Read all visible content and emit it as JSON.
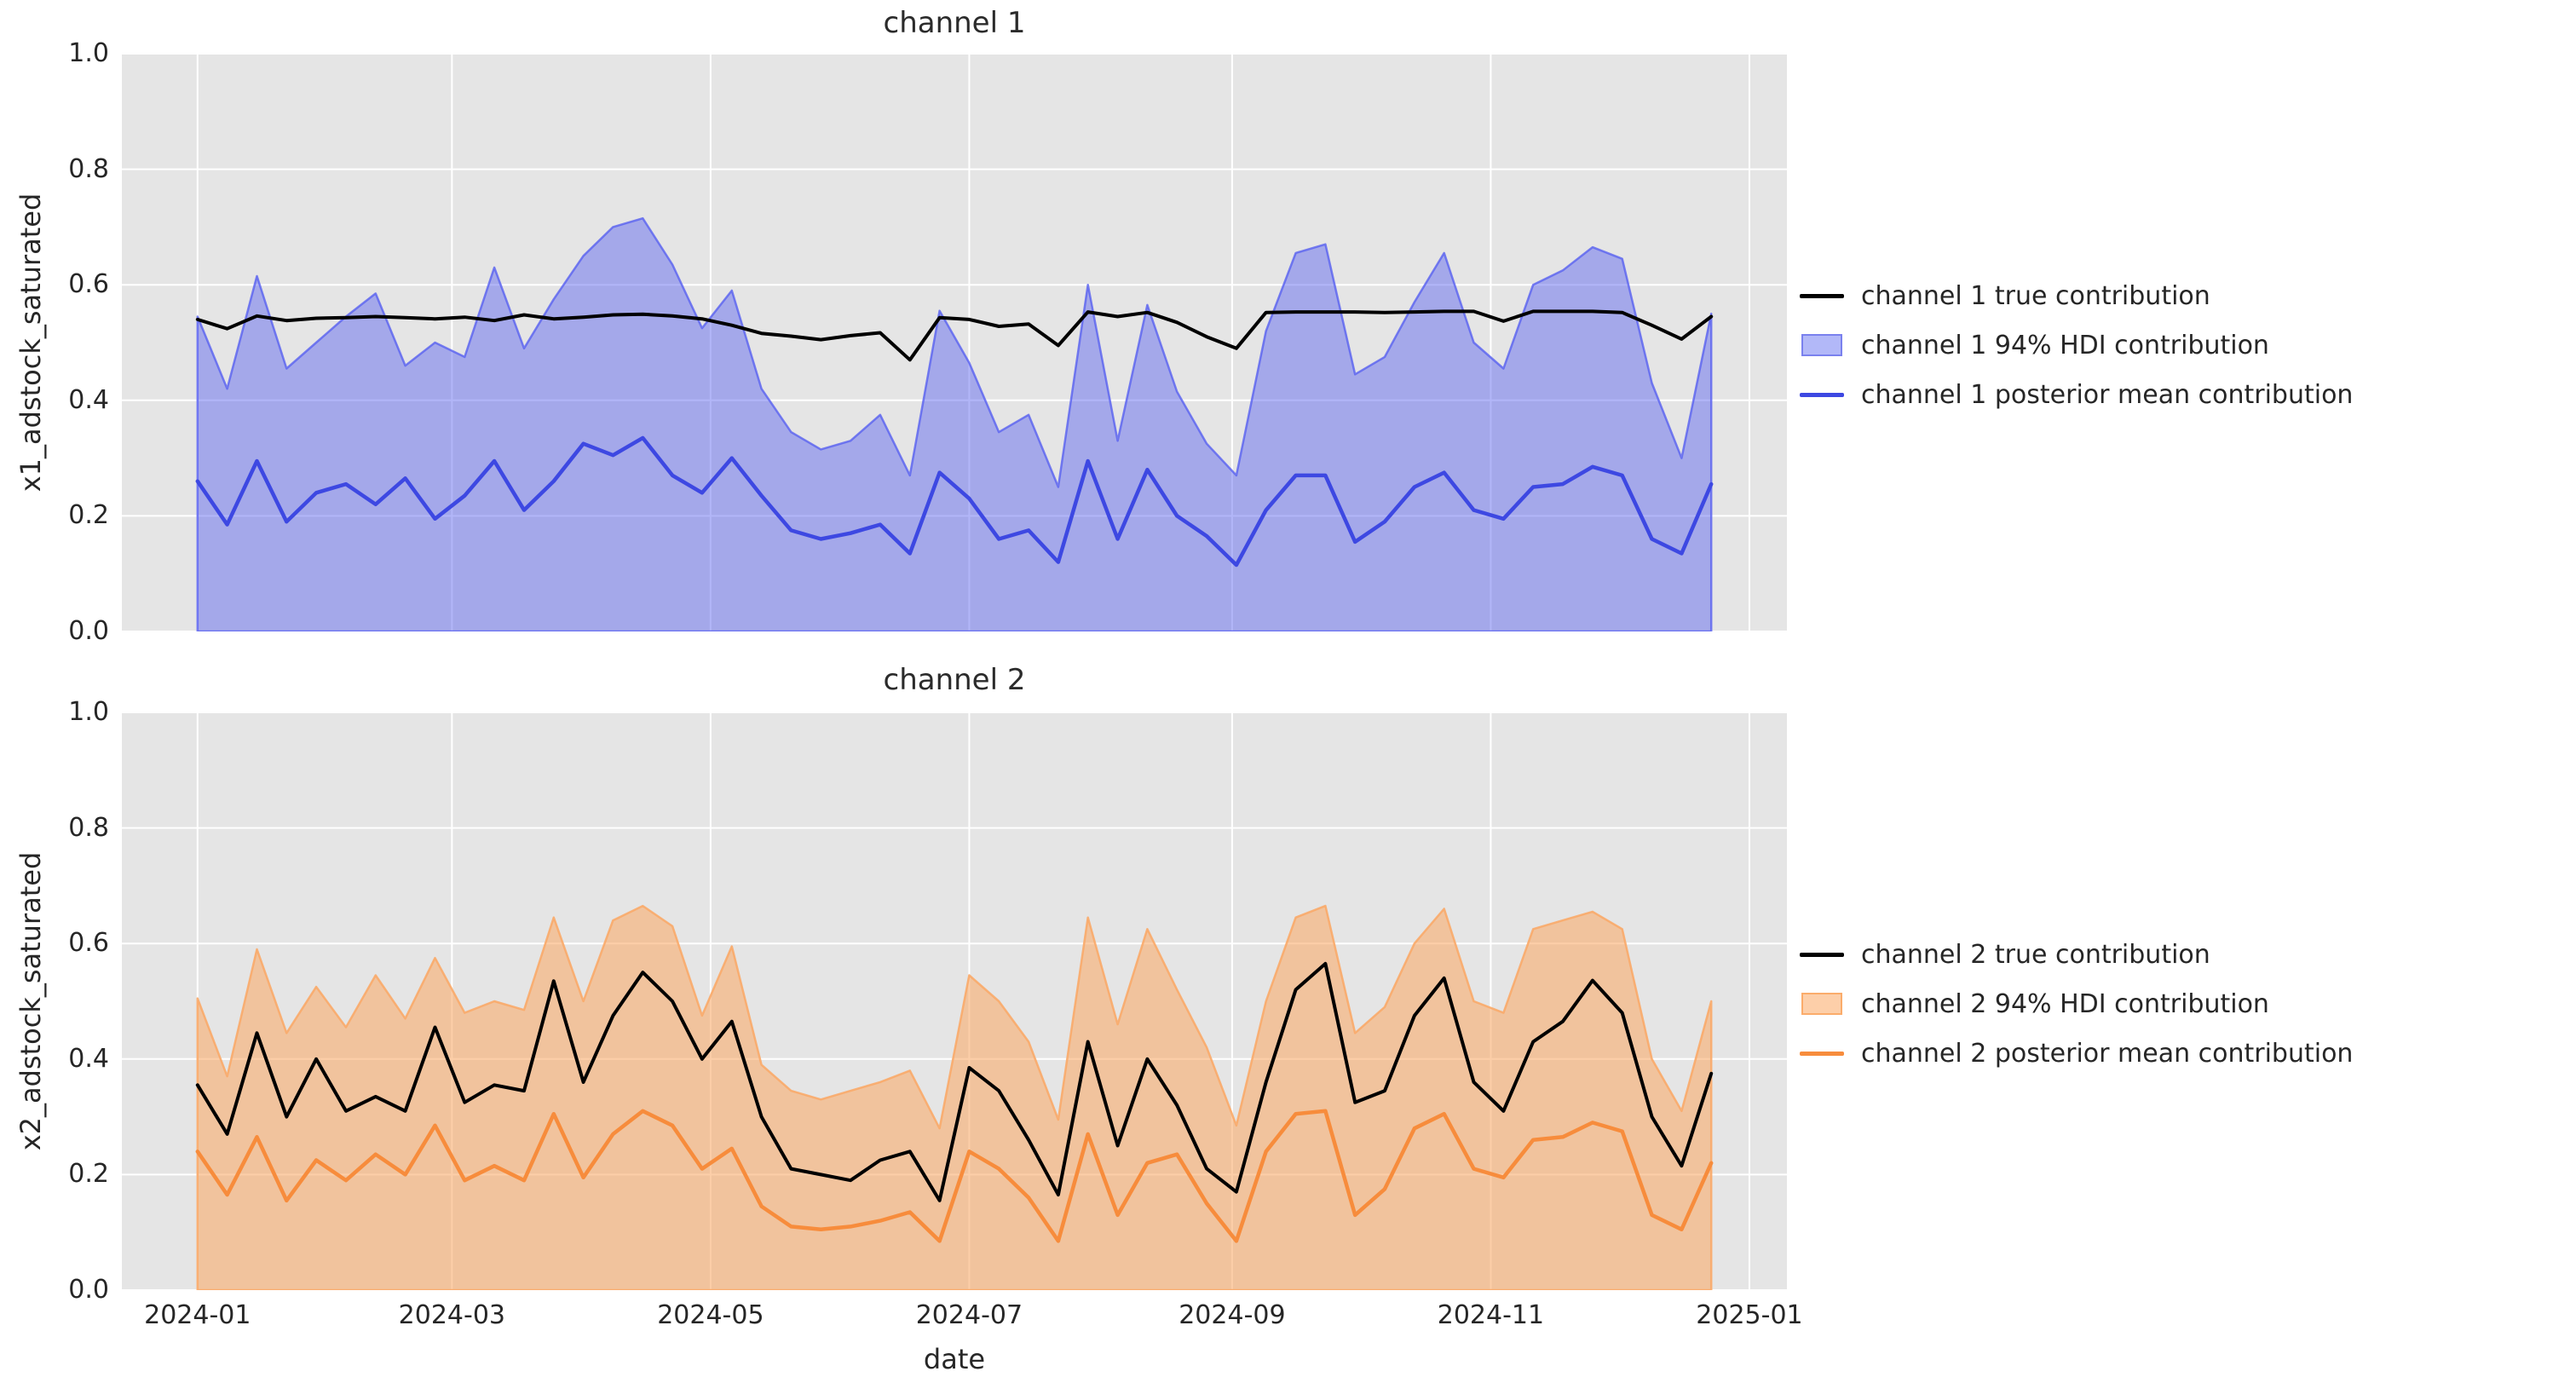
{
  "figure": {
    "xlabel": "date",
    "background": "#ffffff",
    "plot_background": "#e5e5e5",
    "grid_color": "#ffffff",
    "text_color": "#262626",
    "xticks": [
      {
        "label": "2024-01",
        "day": 0
      },
      {
        "label": "2024-03",
        "day": 60
      },
      {
        "label": "2024-05",
        "day": 121
      },
      {
        "label": "2024-07",
        "day": 182
      },
      {
        "label": "2024-09",
        "day": 244
      },
      {
        "label": "2024-11",
        "day": 305
      },
      {
        "label": "2025-01",
        "day": 366
      }
    ]
  },
  "chart_data": [
    {
      "type": "area",
      "title": "channel 1",
      "ylabel": "x1_adstock_saturated",
      "ylim": [
        0.0,
        1.0
      ],
      "yticks": [
        0.0,
        0.2,
        0.4,
        0.6,
        0.8,
        1.0
      ],
      "x_start_day": 0,
      "x_step_days": 7,
      "n_points": 52,
      "grid": true,
      "legend_position": "center-right",
      "series": [
        {
          "name": "channel 1 true contribution",
          "kind": "line",
          "color": "#000000",
          "values": [
            0.54,
            0.524,
            0.546,
            0.538,
            0.542,
            0.543,
            0.545,
            0.543,
            0.541,
            0.544,
            0.538,
            0.548,
            0.541,
            0.544,
            0.548,
            0.549,
            0.546,
            0.541,
            0.53,
            0.516,
            0.511,
            0.505,
            0.512,
            0.517,
            0.47,
            0.543,
            0.54,
            0.528,
            0.532,
            0.495,
            0.553,
            0.545,
            0.552,
            0.535,
            0.51,
            0.49,
            0.552,
            0.553,
            0.553,
            0.553,
            0.552,
            0.553,
            0.554,
            0.554,
            0.537,
            0.554,
            0.554,
            0.554,
            0.552,
            0.53,
            0.506,
            0.545
          ]
        },
        {
          "name": "channel 1 94% HDI contribution",
          "kind": "band",
          "fill": "rgba(88,96,240,0.46)",
          "edge": "rgba(88,96,240,0.8)",
          "swatch_fill": "#b2b8f8",
          "swatch_edge": "#7a81ee",
          "lower": 0.0,
          "values": [
            0.545,
            0.42,
            0.615,
            0.455,
            0.5,
            0.545,
            0.585,
            0.46,
            0.5,
            0.475,
            0.63,
            0.49,
            0.575,
            0.65,
            0.7,
            0.715,
            0.635,
            0.525,
            0.59,
            0.42,
            0.345,
            0.315,
            0.33,
            0.375,
            0.27,
            0.555,
            0.465,
            0.345,
            0.375,
            0.25,
            0.6,
            0.33,
            0.565,
            0.415,
            0.325,
            0.27,
            0.52,
            0.655,
            0.67,
            0.445,
            0.475,
            0.57,
            0.655,
            0.5,
            0.455,
            0.6,
            0.625,
            0.665,
            0.645,
            0.43,
            0.3,
            0.55
          ]
        },
        {
          "name": "channel 1 posterior mean contribution",
          "kind": "line",
          "color": "#3d48e2",
          "values": [
            0.26,
            0.185,
            0.295,
            0.19,
            0.24,
            0.255,
            0.22,
            0.265,
            0.195,
            0.235,
            0.295,
            0.21,
            0.26,
            0.325,
            0.305,
            0.335,
            0.27,
            0.24,
            0.3,
            0.235,
            0.175,
            0.16,
            0.17,
            0.185,
            0.135,
            0.275,
            0.23,
            0.16,
            0.175,
            0.12,
            0.295,
            0.16,
            0.28,
            0.2,
            0.165,
            0.115,
            0.21,
            0.27,
            0.27,
            0.155,
            0.19,
            0.25,
            0.275,
            0.21,
            0.195,
            0.25,
            0.255,
            0.285,
            0.27,
            0.16,
            0.135,
            0.255
          ]
        }
      ]
    },
    {
      "type": "area",
      "title": "channel 2",
      "ylabel": "x2_adstock_saturated",
      "ylim": [
        0.0,
        1.0
      ],
      "yticks": [
        0.0,
        0.2,
        0.4,
        0.6,
        0.8,
        1.0
      ],
      "x_start_day": 0,
      "x_step_days": 7,
      "n_points": 52,
      "grid": true,
      "legend_position": "center-right",
      "series": [
        {
          "name": "channel 2 true contribution",
          "kind": "line",
          "color": "#000000",
          "values": [
            0.355,
            0.27,
            0.445,
            0.3,
            0.4,
            0.31,
            0.335,
            0.31,
            0.455,
            0.325,
            0.355,
            0.345,
            0.535,
            0.36,
            0.475,
            0.55,
            0.5,
            0.4,
            0.465,
            0.3,
            0.21,
            0.2,
            0.19,
            0.225,
            0.24,
            0.155,
            0.385,
            0.345,
            0.26,
            0.165,
            0.43,
            0.25,
            0.4,
            0.32,
            0.21,
            0.17,
            0.36,
            0.52,
            0.565,
            0.325,
            0.345,
            0.475,
            0.54,
            0.36,
            0.31,
            0.43,
            0.465,
            0.536,
            0.48,
            0.3,
            0.215,
            0.375
          ]
        },
        {
          "name": "channel 2 94% HDI contribution",
          "kind": "band",
          "fill": "rgba(250,170,105,0.58)",
          "edge": "rgba(250,170,105,0.9)",
          "swatch_fill": "#fdcfa9",
          "swatch_edge": "#fbac6b",
          "lower": 0.0,
          "values": [
            0.505,
            0.37,
            0.59,
            0.445,
            0.525,
            0.455,
            0.545,
            0.47,
            0.575,
            0.48,
            0.5,
            0.485,
            0.645,
            0.5,
            0.64,
            0.665,
            0.63,
            0.475,
            0.595,
            0.39,
            0.345,
            0.33,
            0.345,
            0.36,
            0.38,
            0.28,
            0.545,
            0.5,
            0.43,
            0.295,
            0.645,
            0.46,
            0.625,
            0.52,
            0.42,
            0.285,
            0.5,
            0.645,
            0.665,
            0.445,
            0.49,
            0.6,
            0.66,
            0.5,
            0.48,
            0.625,
            0.64,
            0.655,
            0.625,
            0.4,
            0.31,
            0.5
          ]
        },
        {
          "name": "channel 2 posterior mean contribution",
          "kind": "line",
          "color": "#f78c3c",
          "values": [
            0.24,
            0.165,
            0.265,
            0.155,
            0.225,
            0.19,
            0.235,
            0.2,
            0.285,
            0.19,
            0.215,
            0.19,
            0.305,
            0.195,
            0.27,
            0.31,
            0.285,
            0.21,
            0.245,
            0.145,
            0.11,
            0.105,
            0.11,
            0.12,
            0.135,
            0.085,
            0.24,
            0.21,
            0.16,
            0.085,
            0.27,
            0.13,
            0.22,
            0.235,
            0.15,
            0.085,
            0.24,
            0.305,
            0.31,
            0.13,
            0.175,
            0.28,
            0.305,
            0.21,
            0.195,
            0.26,
            0.265,
            0.29,
            0.275,
            0.13,
            0.105,
            0.22
          ]
        }
      ]
    }
  ]
}
